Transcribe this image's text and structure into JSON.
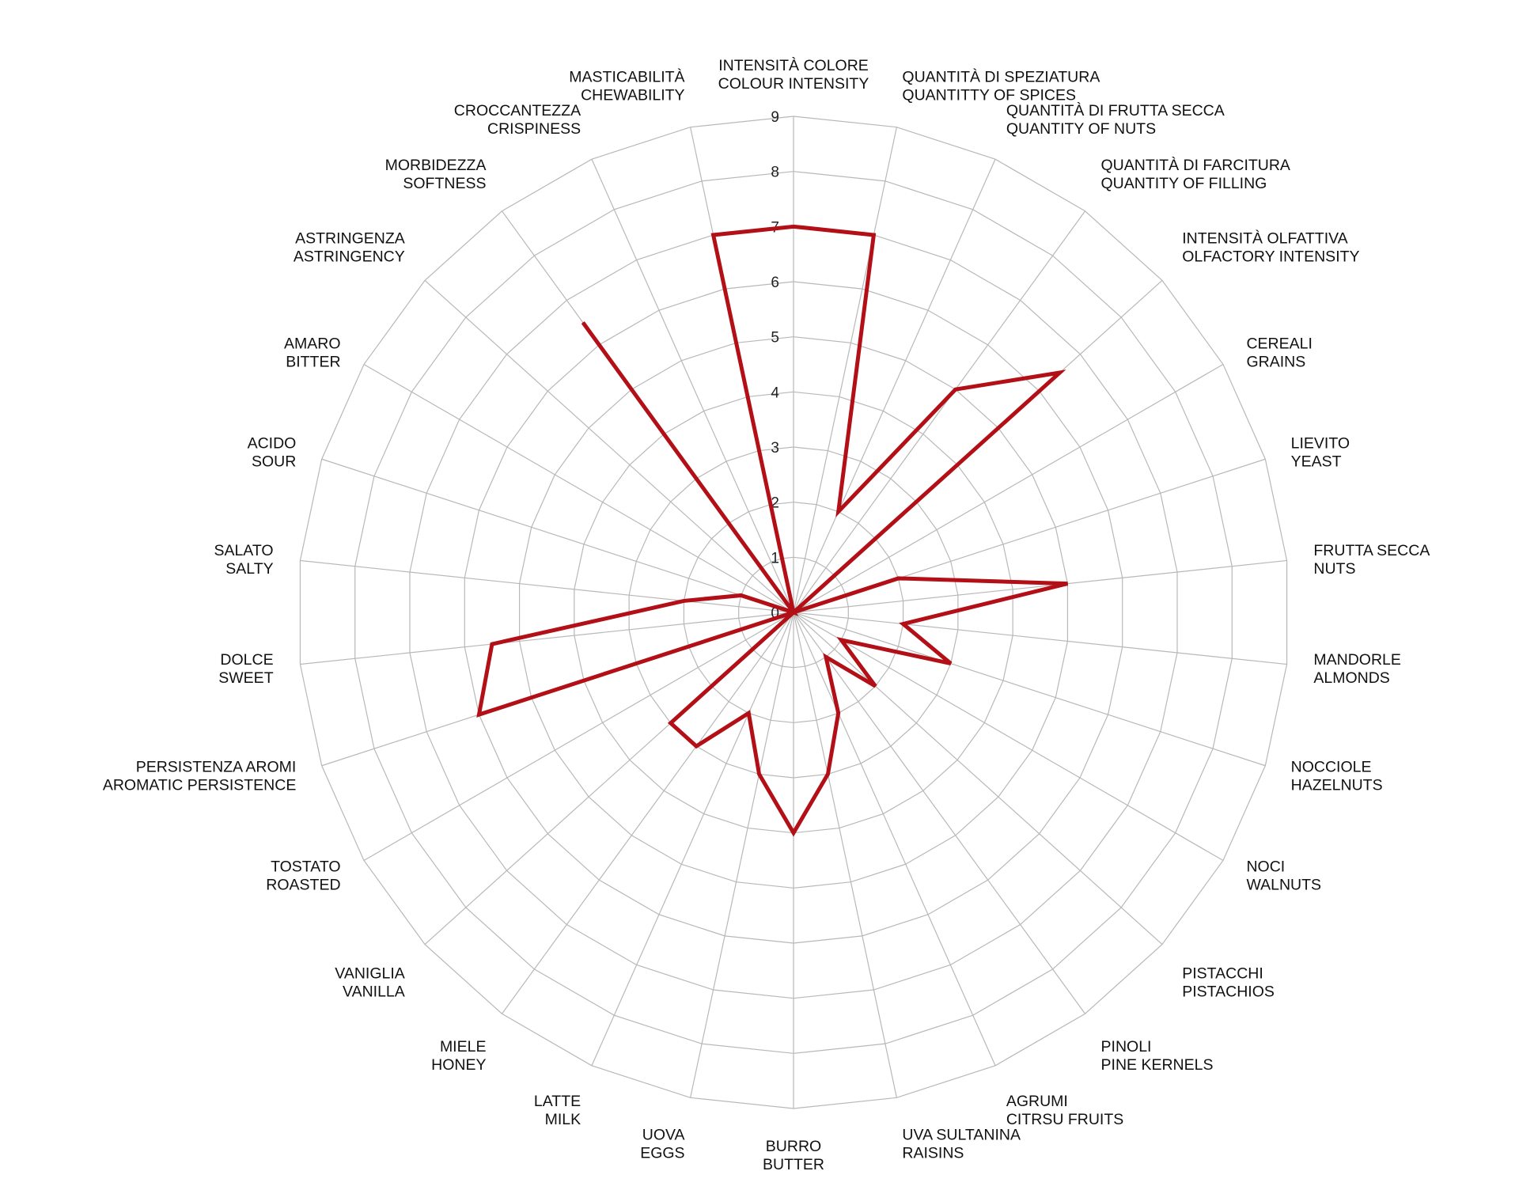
{
  "chart_data": {
    "type": "radar",
    "categories": [
      {
        "it": "INTENSITÀ COLORE",
        "en": "COLOUR INTENSITY"
      },
      {
        "it": "QUANTITÀ DI SPEZIATURA",
        "en": "QUANTITTY OF SPICES"
      },
      {
        "it": "QUANTITÀ DI FRUTTA SECCA",
        "en": "QUANTITY OF NUTS"
      },
      {
        "it": "QUANTITÀ DI FARCITURA",
        "en": "QUANTITY OF FILLING"
      },
      {
        "it": "INTENSITÀ OLFATTIVA",
        "en": "OLFACTORY INTENSITY"
      },
      {
        "it": "CEREALI",
        "en": "GRAINS"
      },
      {
        "it": "LIEVITO",
        "en": "YEAST"
      },
      {
        "it": "FRUTTA SECCA",
        "en": "NUTS"
      },
      {
        "it": "MANDORLE",
        "en": "ALMONDS"
      },
      {
        "it": "NOCCIOLE",
        "en": "HAZELNUTS"
      },
      {
        "it": "NOCI",
        "en": "WALNUTS"
      },
      {
        "it": "PISTACCHI",
        "en": "PISTACHIOS"
      },
      {
        "it": "PINOLI",
        "en": "PINE KERNELS"
      },
      {
        "it": "AGRUMI",
        "en": "CITRSU FRUITS"
      },
      {
        "it": "UVA SULTANINA",
        "en": "RAISINS"
      },
      {
        "it": "BURRO",
        "en": "BUTTER"
      },
      {
        "it": "UOVA",
        "en": "EGGS"
      },
      {
        "it": "LATTE",
        "en": "MILK"
      },
      {
        "it": "MIELE",
        "en": "HONEY"
      },
      {
        "it": "VANIGLIA",
        "en": "VANILLA"
      },
      {
        "it": "TOSTATO",
        "en": "ROASTED"
      },
      {
        "it": "PERSISTENZA AROMI",
        "en": "AROMATIC PERSISTENCE"
      },
      {
        "it": "DOLCE",
        "en": "SWEET"
      },
      {
        "it": "SALATO",
        "en": "SALTY"
      },
      {
        "it": "ACIDO",
        "en": "SOUR"
      },
      {
        "it": "AMARO",
        "en": "BITTER"
      },
      {
        "it": "ASTRINGENZA",
        "en": "ASTRINGENCY"
      },
      {
        "it": "MORBIDEZZA",
        "en": "SOFTNESS"
      },
      {
        "it": "CROCCANTEZZA",
        "en": "CRISPINESS"
      },
      {
        "it": "MASTICABILITÀ",
        "en": "CHEWABILITY"
      }
    ],
    "series": [
      {
        "values": [
          7,
          7,
          2,
          5,
          6.5,
          0,
          2,
          5,
          2,
          3,
          1,
          2,
          1,
          2,
          3,
          4,
          3,
          2,
          3,
          3,
          0,
          6,
          5.5,
          2,
          1,
          0,
          0,
          6.5,
          0,
          7
        ],
        "color": "#b30f16"
      }
    ],
    "rlim": [
      0,
      9
    ],
    "ticks": [
      "0",
      "1",
      "2",
      "3",
      "4",
      "5",
      "6",
      "7",
      "8",
      "9"
    ],
    "grid": true,
    "grid_color": "#b8b8b8",
    "legend": "none"
  }
}
